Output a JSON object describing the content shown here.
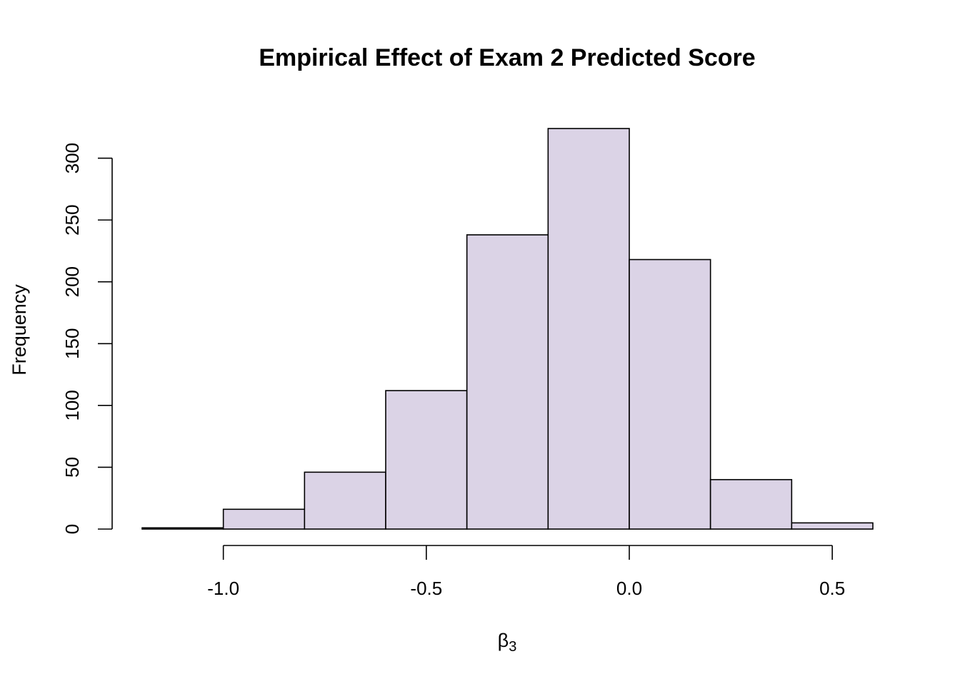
{
  "chart_data": {
    "type": "bar",
    "title": "Empirical Effect of Exam 2 Predicted Score",
    "xlabel_symbol": "β",
    "xlabel_subscript": "3",
    "ylabel": "Frequency",
    "bin_edges": [
      -1.2,
      -1.0,
      -0.8,
      -0.6,
      -0.4,
      -0.2,
      0.0,
      0.2,
      0.4,
      0.6
    ],
    "values": [
      1,
      16,
      46,
      112,
      238,
      324,
      218,
      40,
      5
    ],
    "xlim": [
      -1.2,
      0.6
    ],
    "ylim": [
      0,
      324
    ],
    "x_ticks": [
      -1.0,
      -0.5,
      0.0,
      0.5
    ],
    "x_tick_labels": [
      "-1.0",
      "-0.5",
      "0.0",
      "0.5"
    ],
    "y_ticks": [
      0,
      50,
      100,
      150,
      200,
      250,
      300
    ],
    "y_tick_labels": [
      "0",
      "50",
      "100",
      "150",
      "200",
      "250",
      "300"
    ],
    "bar_fill": "#dbd3e6",
    "bar_stroke": "#000000",
    "grid": false,
    "legend": "none"
  }
}
